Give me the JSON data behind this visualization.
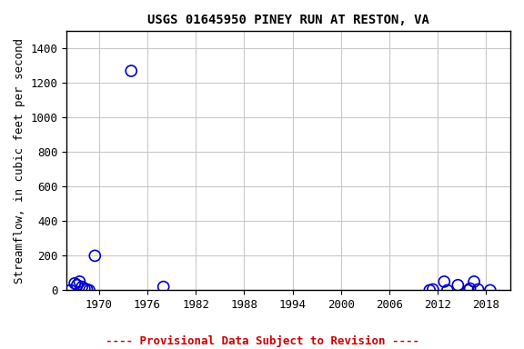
{
  "title": "USGS 01645950 PINEY RUN AT RESTON, VA",
  "ylabel": "Streamflow, in cubic feet per second",
  "xlim": [
    1966,
    2021
  ],
  "ylim": [
    0,
    1500
  ],
  "xticks": [
    1970,
    1976,
    1982,
    1988,
    1994,
    2000,
    2006,
    2012,
    2018
  ],
  "yticks": [
    0,
    200,
    400,
    600,
    800,
    1000,
    1200,
    1400
  ],
  "x_data": [
    1966.5,
    1967.0,
    1967.3,
    1967.6,
    1967.9,
    1968.2,
    1968.5,
    1968.8,
    1969.5,
    1974.0,
    1978.0,
    2011.0,
    2011.4,
    2012.8,
    2013.2,
    2014.5,
    2015.8,
    2016.0,
    2016.5,
    2017.0,
    2018.5
  ],
  "y_data": [
    0,
    40,
    30,
    50,
    20,
    10,
    5,
    0,
    200,
    1270,
    20,
    0,
    5,
    50,
    0,
    30,
    0,
    10,
    50,
    5,
    0
  ],
  "marker_color": "#0000cc",
  "marker_size": 5,
  "grid_color": "#c8c8c8",
  "background_color": "#ffffff",
  "footnote": "---- Provisional Data Subject to Revision ----",
  "footnote_color": "#cc0000",
  "title_fontsize": 10,
  "label_fontsize": 9,
  "tick_fontsize": 9,
  "footnote_fontsize": 9
}
